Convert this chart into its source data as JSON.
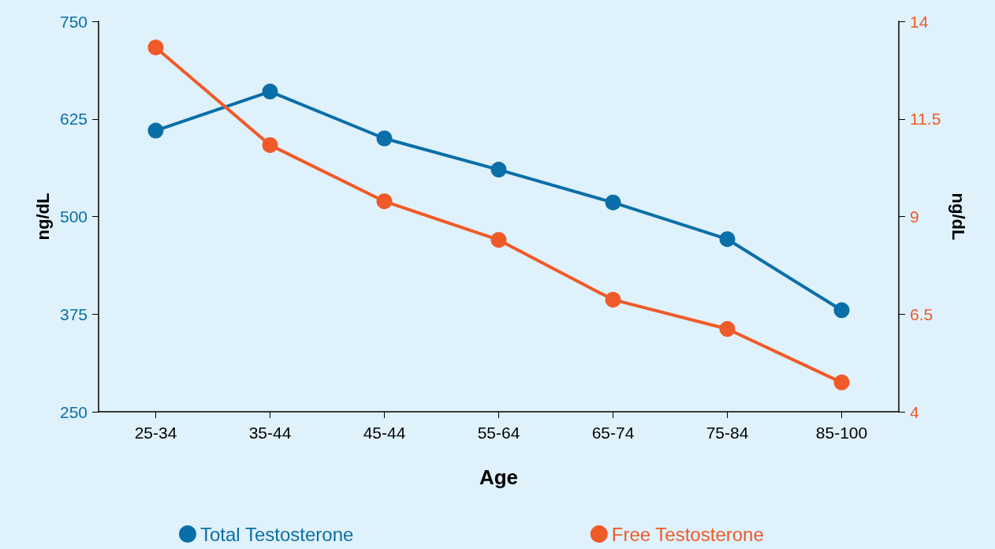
{
  "chart_data": {
    "type": "line",
    "xlabel": "Age",
    "ylabel": "ng/dL",
    "y2label": "ng/dL",
    "categories": [
      "25-34",
      "35-44",
      "45-44",
      "55-64",
      "65-74",
      "75-84",
      "85-100"
    ],
    "series": [
      {
        "name": "Total Testosterone",
        "color": "#0a6fa8",
        "values": [
          610,
          660,
          600,
          560,
          518,
          471,
          380
        ]
      },
      {
        "name": "Free Testosterone",
        "color": "#f05a28",
        "axis": "y2",
        "values": [
          13.33,
          10.83,
          9.39,
          8.4,
          6.87,
          6.12,
          4.75
        ]
      }
    ],
    "ylim": [
      250,
      750
    ],
    "yticks": [
      250,
      375,
      500,
      625,
      750
    ],
    "y2lim": [
      4,
      14
    ],
    "y2ticks": [
      4,
      6.5,
      9,
      11.5,
      14
    ],
    "grid": false,
    "legend": "bottom",
    "marker": "circle",
    "line_style": "solid"
  }
}
